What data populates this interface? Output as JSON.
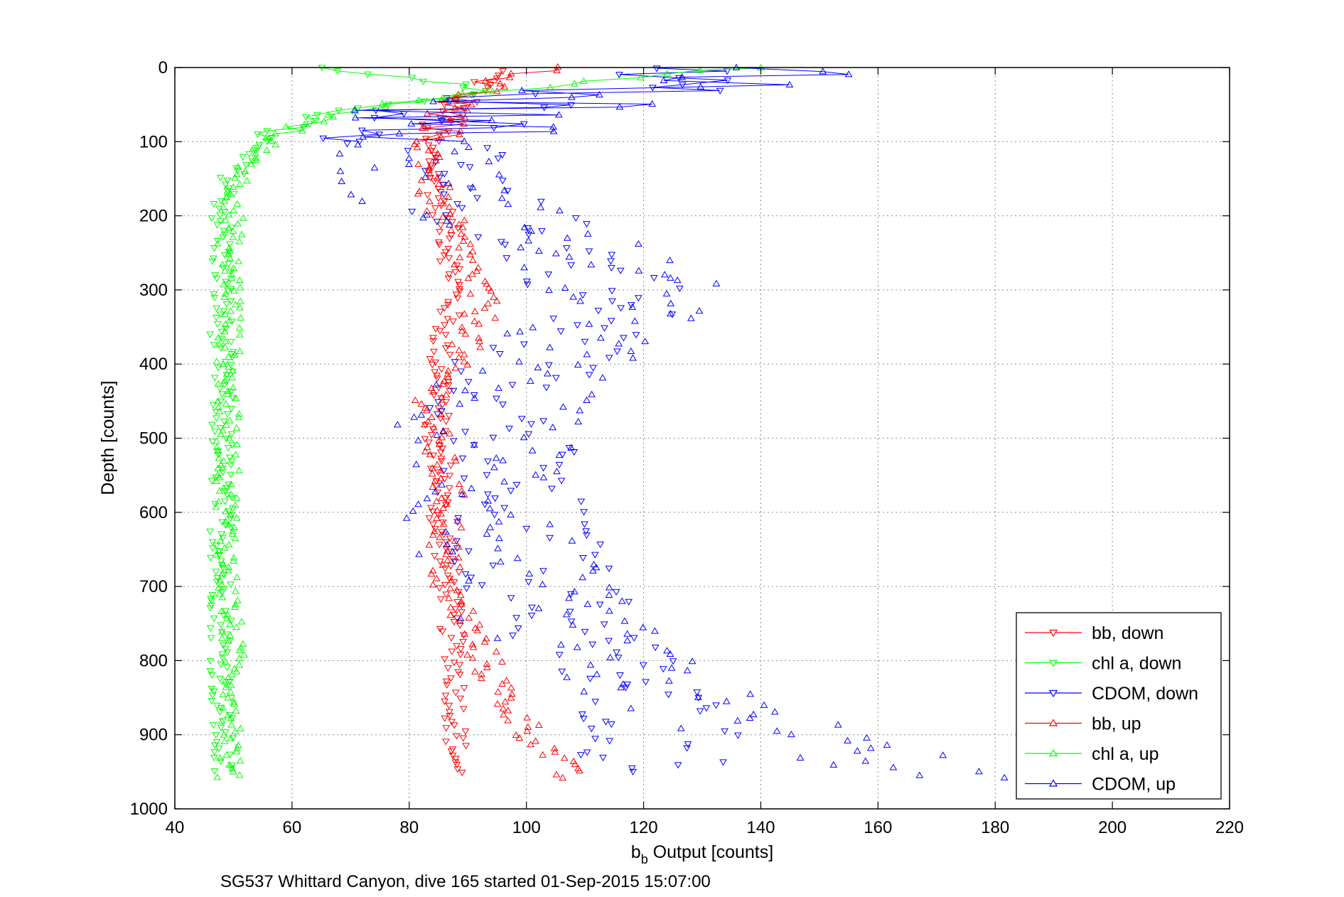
{
  "chart_data": {
    "type": "scatter",
    "title": "",
    "caption": "SG537 Whittard Canyon, dive 165 started 01-Sep-2015 15:07:00",
    "xlabel": {
      "main": "b",
      "sub": "b",
      "rest": " Output [counts]"
    },
    "ylabel": "Depth [counts]",
    "xlim": [
      40,
      220
    ],
    "ylim": [
      0,
      1000
    ],
    "y_reversed": true,
    "grid": true,
    "legend_position": "bottom-right",
    "x_ticks": [
      40,
      60,
      80,
      100,
      120,
      140,
      160,
      180,
      200,
      220
    ],
    "y_ticks": [
      0,
      100,
      200,
      300,
      400,
      500,
      600,
      700,
      800,
      900,
      1000
    ],
    "colors": {
      "red": "#ff0000",
      "green": "#00ff00",
      "blue": "#0000ff"
    },
    "line_depth_max": 100,
    "series": [
      {
        "name": "bb, down",
        "color": "#ff0000",
        "marker": "triangle-down",
        "depths": [
          5,
          20,
          40,
          60,
          80,
          100,
          130,
          170,
          200,
          250,
          300,
          350,
          400,
          430,
          470,
          500,
          550,
          600,
          650,
          700,
          750,
          800,
          850,
          900,
          950
        ],
        "values": [
          95,
          93,
          90,
          87,
          84,
          83,
          84,
          85,
          86,
          87,
          88,
          86,
          85,
          86,
          85,
          84,
          86,
          85,
          86,
          87,
          87,
          88,
          88,
          88,
          88
        ],
        "spread": 2
      },
      {
        "name": "chl a, down",
        "color": "#00ff00",
        "marker": "triangle-down",
        "depths": [
          0,
          10,
          20,
          30,
          45,
          60,
          75,
          90,
          100,
          110,
          130,
          160,
          200,
          250,
          300,
          350,
          400,
          450,
          500,
          550,
          600,
          650,
          700,
          750,
          800,
          850,
          900,
          950
        ],
        "values": [
          66,
          75,
          85,
          92,
          82,
          68,
          61,
          56,
          54,
          53,
          51,
          49,
          48,
          48,
          48,
          48,
          48,
          48,
          48,
          48,
          48,
          48,
          48,
          48,
          48,
          48,
          48,
          48
        ],
        "spread": 2
      },
      {
        "name": "CDOM, down",
        "color": "#0000ff",
        "marker": "triangle-down",
        "depths": [
          0,
          10,
          20,
          30,
          50,
          70,
          90,
          110,
          130,
          160,
          200,
          250,
          300,
          350,
          400,
          450,
          500,
          550,
          600,
          650,
          700,
          750,
          800,
          850,
          900,
          950
        ],
        "values": [
          110,
          130,
          125,
          115,
          100,
          90,
          85,
          82,
          82,
          84,
          95,
          108,
          115,
          112,
          100,
          98,
          95,
          95,
          97,
          100,
          103,
          108,
          113,
          120,
          125,
          120
        ],
        "spread": 14
      },
      {
        "name": "bb, up",
        "color": "#ff0000",
        "marker": "triangle-up",
        "depths": [
          0,
          10,
          20,
          30,
          50,
          70,
          90,
          100,
          120,
          150,
          180,
          200,
          250,
          300,
          350,
          400,
          450,
          500,
          550,
          600,
          650,
          700,
          750,
          800,
          850,
          900,
          930,
          960
        ],
        "values": [
          110,
          100,
          95,
          92,
          88,
          85,
          84,
          83,
          84,
          84,
          84,
          86,
          89,
          92,
          92,
          87,
          84,
          84,
          86,
          87,
          86,
          86,
          90,
          93,
          96,
          101,
          105,
          107
        ],
        "spread": 3
      },
      {
        "name": "chl a, up",
        "color": "#00ff00",
        "marker": "triangle-up",
        "depths": [
          0,
          10,
          20,
          40,
          60,
          80,
          100,
          120,
          150,
          200,
          250,
          300,
          400,
          500,
          600,
          700,
          800,
          900,
          960
        ],
        "values": [
          140,
          120,
          110,
          85,
          70,
          60,
          56,
          54,
          51,
          50,
          49,
          50,
          49,
          49,
          49,
          49,
          50,
          50,
          49
        ],
        "spread": 2
      },
      {
        "name": "CDOM, up",
        "color": "#0000ff",
        "marker": "triangle-up",
        "depths": [
          0,
          10,
          20,
          40,
          60,
          80,
          100,
          130,
          160,
          200,
          250,
          300,
          350,
          400,
          450,
          500,
          550,
          600,
          650,
          700,
          750,
          800,
          850,
          900,
          940,
          960
        ],
        "values": [
          150,
          150,
          135,
          110,
          95,
          88,
          84,
          80,
          82,
          93,
          110,
          118,
          112,
          102,
          95,
          93,
          95,
          93,
          95,
          98,
          105,
          113,
          125,
          145,
          165,
          170
        ],
        "spread": 16
      }
    ]
  }
}
